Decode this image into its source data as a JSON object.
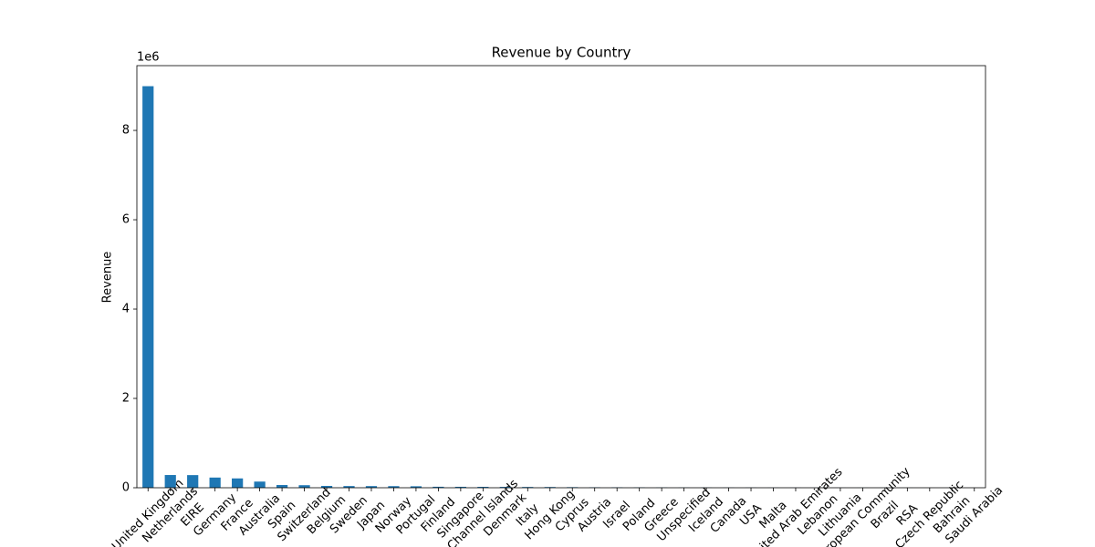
{
  "chart_data": {
    "type": "bar",
    "title": "Revenue by Country",
    "y_label": "Revenue",
    "y_offset_label": "1e6",
    "categories": [
      "United Kingdom",
      "Netherlands",
      "EIRE",
      "Germany",
      "France",
      "Australia",
      "Spain",
      "Switzerland",
      "Belgium",
      "Sweden",
      "Japan",
      "Norway",
      "Portugal",
      "Finland",
      "Singapore",
      "Channel Islands",
      "Denmark",
      "Italy",
      "Hong Kong",
      "Cyprus",
      "Austria",
      "Israel",
      "Poland",
      "Greece",
      "Unspecified",
      "Iceland",
      "Canada",
      "USA",
      "Malta",
      "United Arab Emirates",
      "Lebanon",
      "Lithuania",
      "European Community",
      "Brazil",
      "RSA",
      "Czech Republic",
      "Bahrain",
      "Saudi Arabia"
    ],
    "values": [
      8.99,
      0.285,
      0.283,
      0.228,
      0.209,
      0.138,
      0.061,
      0.057,
      0.041,
      0.038,
      0.037,
      0.036,
      0.033,
      0.022,
      0.021,
      0.02,
      0.019,
      0.017,
      0.016,
      0.013,
      0.01,
      0.0083,
      0.0072,
      0.0047,
      0.0043,
      0.0043,
      0.0036,
      0.0036,
      0.0025,
      0.0019,
      0.0017,
      0.0017,
      0.0013,
      0.0011,
      0.001,
      0.0007,
      0.0005,
      0.0001
    ],
    "color": "#1f77b4",
    "ylim": [
      0,
      9.45
    ],
    "yticks": [
      0,
      2,
      4,
      6,
      8
    ],
    "grid": false
  }
}
